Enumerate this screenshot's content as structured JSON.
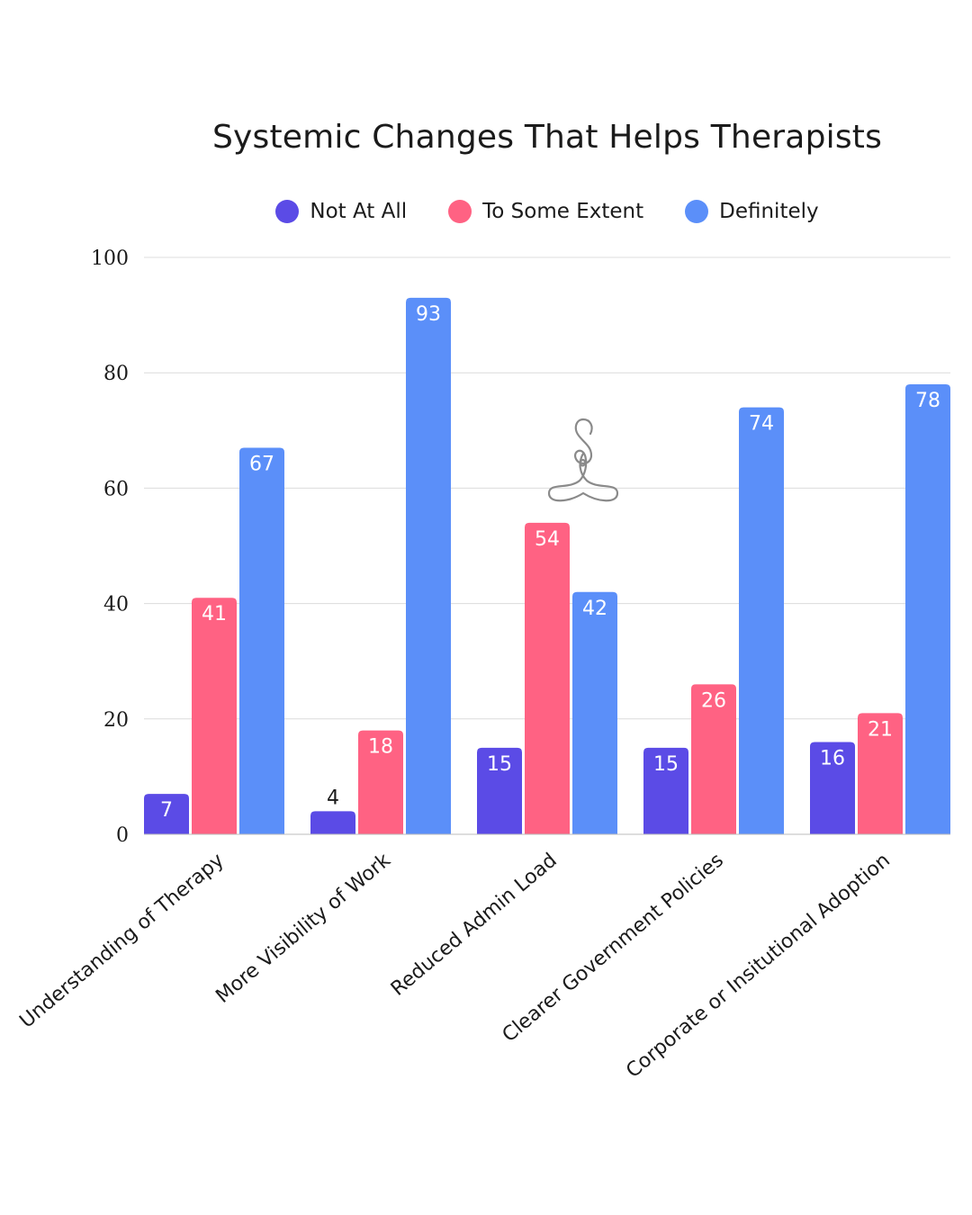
{
  "chart_data": {
    "type": "bar",
    "title": "Systemic Changes That Helps Therapists",
    "categories": [
      "Understanding of Therapy",
      "More Visibility of Work",
      "Reduced Admin Load",
      "Clearer Government Policies",
      "Corporate or Insitutional Adoption"
    ],
    "series": [
      {
        "name": "Not At All",
        "color": "#5b4be6",
        "values": [
          7,
          4,
          15,
          15,
          16
        ]
      },
      {
        "name": "To Some Extent",
        "color": "#ff6283",
        "values": [
          41,
          18,
          54,
          26,
          21
        ]
      },
      {
        "name": "Definitely",
        "color": "#5b8ff9",
        "values": [
          67,
          93,
          42,
          74,
          78
        ]
      }
    ],
    "ylim": [
      0,
      100
    ],
    "yticks": [
      0,
      20,
      40,
      60,
      80,
      100
    ],
    "grid": true,
    "legend_position": "top-center",
    "xlabel": "",
    "ylabel": ""
  }
}
